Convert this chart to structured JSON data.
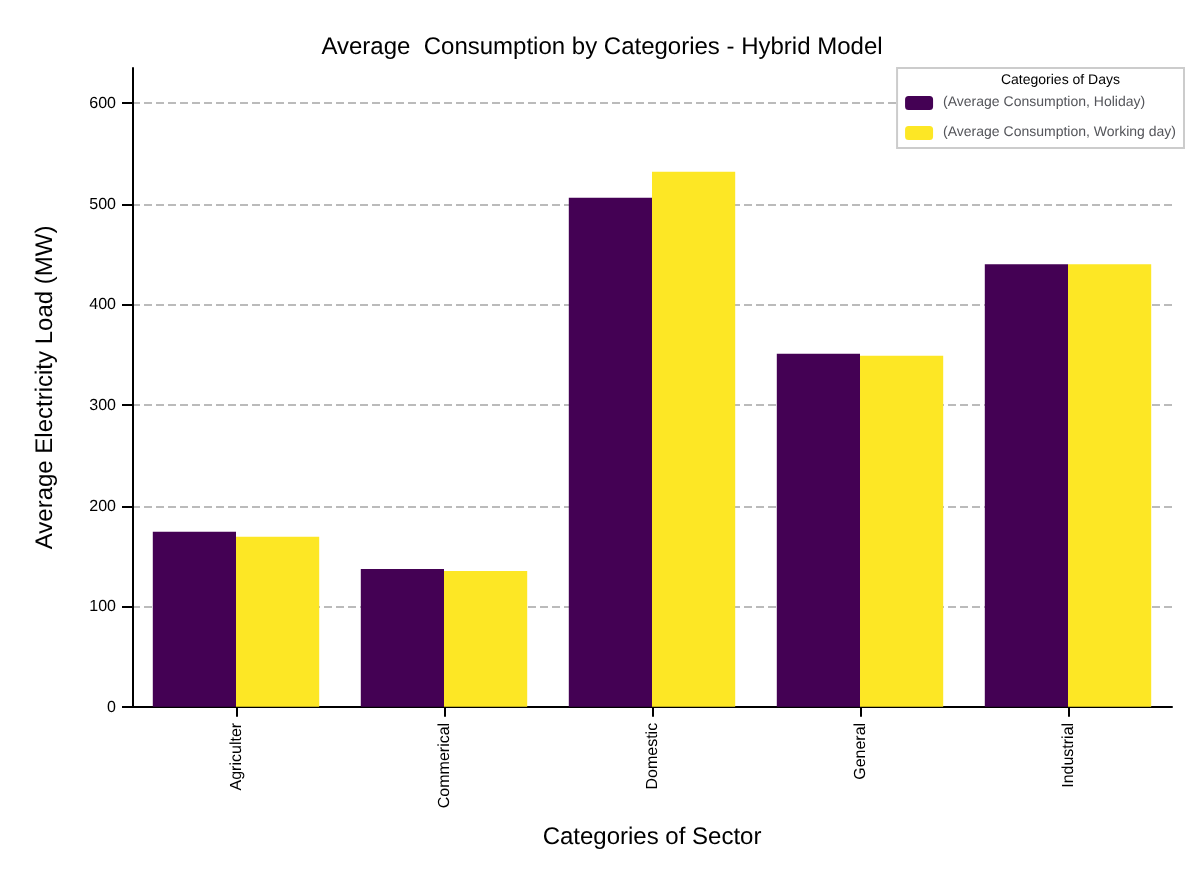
{
  "chart_data": {
    "type": "bar",
    "title": "Average  Consumption by Categories - Hybrid Model",
    "xlabel": "Categories of Sector",
    "ylabel": "Average Electricity Load (MW)",
    "legend_title": "Categories of Days",
    "categories": [
      "Agriculter",
      "Commerical",
      "Domestic",
      "General",
      "Industrial"
    ],
    "series": [
      {
        "name": "(Average Consumption, Holiday)",
        "color": "#440154",
        "values": [
          174,
          137,
          506,
          351,
          440
        ]
      },
      {
        "name": "(Average Consumption, Working day)",
        "color": "#fde725",
        "values": [
          169,
          135,
          532,
          349,
          440
        ]
      }
    ],
    "ylim": [
      0,
      635
    ],
    "yticks": [
      0,
      100,
      200,
      300,
      400,
      500,
      600
    ],
    "grid": "y",
    "legend": "top right"
  }
}
